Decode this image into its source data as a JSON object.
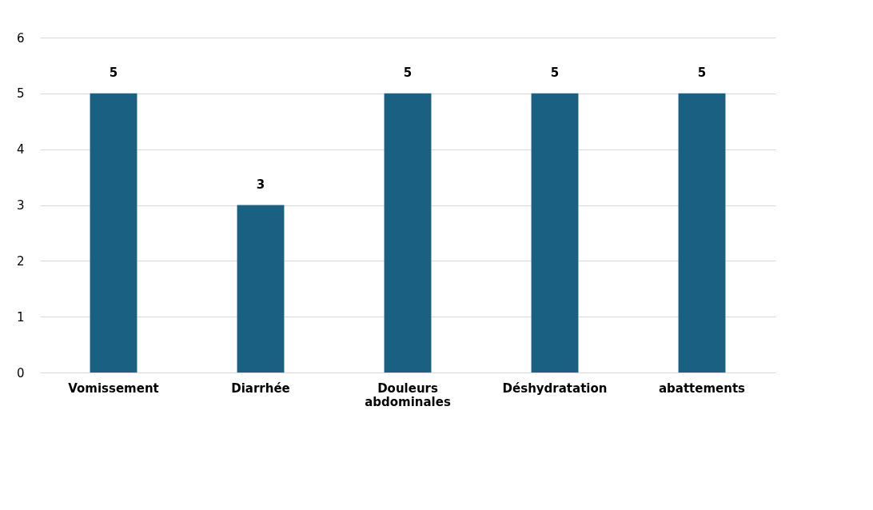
{
  "chart_data": {
    "type": "bar",
    "categories": [
      "Vomissement",
      "Diarrhée",
      "Douleurs abdominales",
      "Déshydratation",
      "abattements"
    ],
    "values": [
      5,
      3,
      5,
      5,
      5
    ],
    "color": "#1a6082",
    "ylim": [
      0,
      6
    ],
    "yticks": [
      0,
      1,
      2,
      3,
      4,
      5,
      6
    ],
    "grid": "y",
    "data_labels": true
  }
}
